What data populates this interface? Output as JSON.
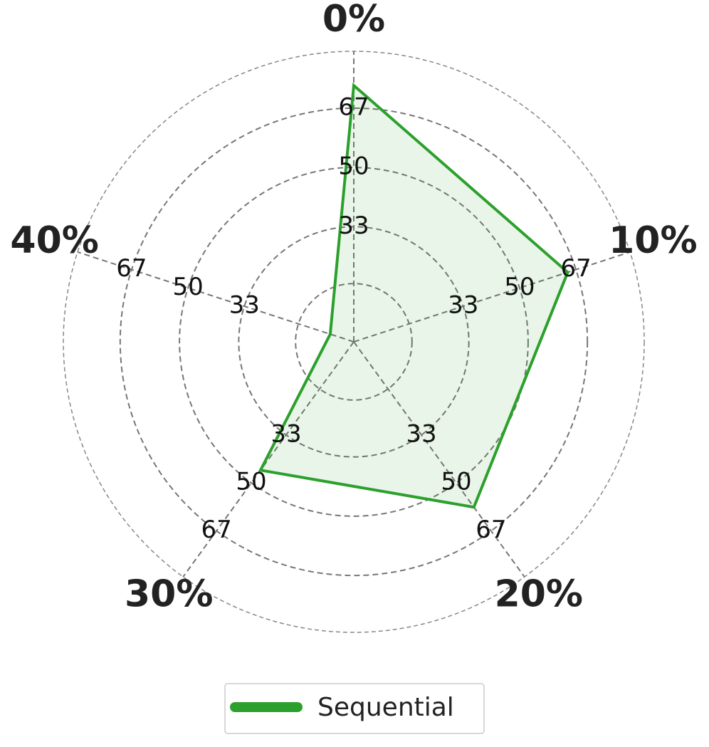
{
  "chart_data": {
    "type": "radar",
    "categories": [
      "0%",
      "10%",
      "20%",
      "30%",
      "40%"
    ],
    "series": [
      {
        "name": "Sequential",
        "color": "#2ca02c",
        "values": [
          73.5,
          64.5,
          58.6,
          45.5,
          7.1
        ]
      }
    ],
    "ylim": [
      0,
      83.3
    ],
    "yticks": [
      33,
      50,
      67
    ],
    "rgrid": [
      16.7,
      33,
      50,
      67
    ],
    "grid": true,
    "legend": "bottom"
  }
}
